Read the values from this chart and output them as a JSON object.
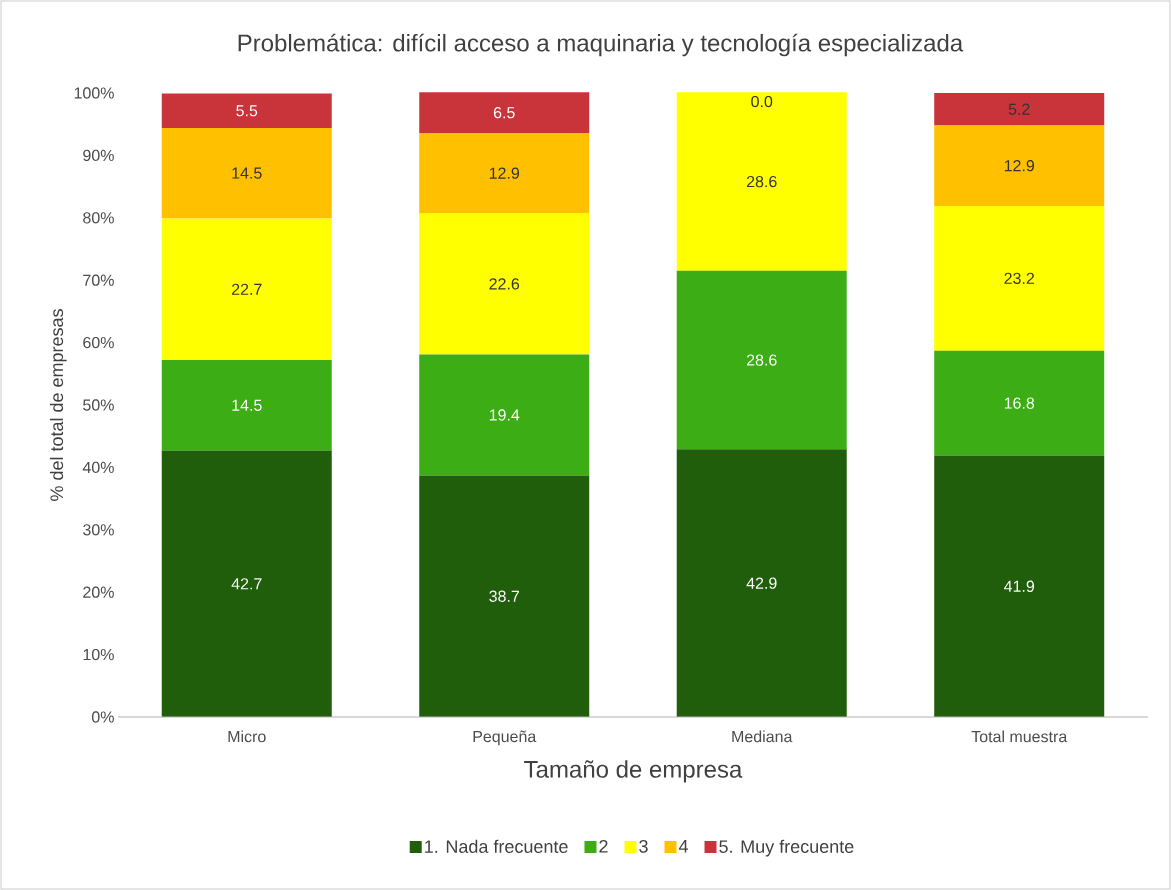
{
  "chart_data": {
    "type": "bar",
    "stacked": true,
    "title": "Problemática: difícil  acceso a maquinaria y tecnología especializada",
    "xlabel": "Tamaño de empresa",
    "ylabel": "% del total de empresas",
    "categories": [
      "Micro",
      "Pequeña",
      "Mediana",
      "Total muestra"
    ],
    "ylim": [
      0,
      100
    ],
    "yticks": [
      {
        "value": 0,
        "label": "0%"
      },
      {
        "value": 10,
        "label": "10%"
      },
      {
        "value": 20,
        "label": "20%"
      },
      {
        "value": 30,
        "label": "30%"
      },
      {
        "value": 40,
        "label": "40%"
      },
      {
        "value": 50,
        "label": "50%"
      },
      {
        "value": 60,
        "label": "60%"
      },
      {
        "value": 70,
        "label": "70%"
      },
      {
        "value": 80,
        "label": "80%"
      },
      {
        "value": 90,
        "label": "90%"
      },
      {
        "value": 100,
        "label": "100%"
      }
    ],
    "legend": "bottom",
    "series": [
      {
        "name": "1. Nada frecuente",
        "color": "#215e0c",
        "values": [
          42.7,
          38.7,
          42.9,
          41.9
        ],
        "value_labels": [
          "42.7",
          "38.7",
          "42.9",
          "41.9"
        ]
      },
      {
        "name": "2",
        "color": "#3cad14",
        "values": [
          14.5,
          19.4,
          28.6,
          16.8
        ],
        "value_labels": [
          "14.5",
          "19.4",
          "28.6",
          "16.8"
        ]
      },
      {
        "name": "3",
        "color": "#ffff00",
        "values": [
          22.7,
          22.6,
          28.6,
          23.2
        ],
        "value_labels": [
          "22.7",
          "22.6",
          "28.6",
          "23.2"
        ]
      },
      {
        "name": "4",
        "color": "#ffc000",
        "values": [
          14.5,
          12.9,
          0.0,
          12.9
        ],
        "value_labels": [
          "14.5",
          "12.9",
          null,
          "12.9"
        ]
      },
      {
        "name": "5. Muy frecuente",
        "color": "#c9343a",
        "values": [
          5.5,
          6.5,
          0.0,
          5.2
        ],
        "value_labels": [
          "5.5",
          "6.5",
          "0.0",
          "5.2"
        ]
      }
    ]
  }
}
